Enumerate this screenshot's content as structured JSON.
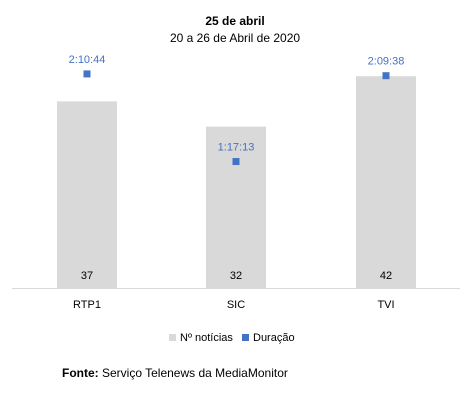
{
  "chart_data": {
    "type": "bar",
    "title": "25 de abril",
    "subtitle": "20 a 26 de Abril de 2020",
    "categories": [
      "RTP1",
      "SIC",
      "TVI"
    ],
    "series": [
      {
        "name": "Nº notícias",
        "values": [
          37,
          32,
          42
        ],
        "color": "#d9d9d9",
        "labels": [
          "37",
          "32",
          "42"
        ]
      },
      {
        "name": "Duração",
        "values": [
          7844,
          4633,
          7778
        ],
        "labels": [
          "2:10:44",
          "1:17:13",
          "2:09:38"
        ],
        "color": "#4472c4",
        "marker": "square"
      }
    ],
    "legend": "bottom-center",
    "grid": false
  },
  "source": {
    "label": "Fonte:",
    "text": " Serviço Telenews da MediaMonitor"
  }
}
